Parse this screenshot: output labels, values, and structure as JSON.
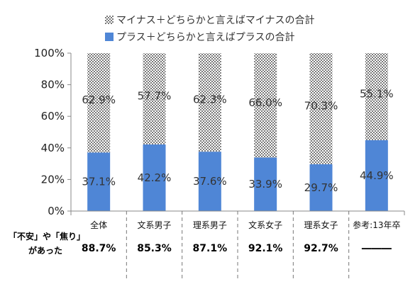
{
  "chart_data": {
    "type": "bar",
    "stacked": true,
    "categories": [
      "全体",
      "文系男子",
      "理系男子",
      "文系女子",
      "理系女子",
      "参考:13年卒"
    ],
    "series": [
      {
        "name": "プラス＋どちらかと言えばプラスの合計",
        "values": [
          37.1,
          42.2,
          37.6,
          33.9,
          29.7,
          44.9
        ],
        "labels": [
          "37.1%",
          "42.2%",
          "37.6%",
          "33.9%",
          "29.7%",
          "44.9%"
        ],
        "color": "#4f86d6"
      },
      {
        "name": "マイナス＋どちらかと言えばマイナスの合計",
        "values": [
          62.9,
          57.7,
          62.3,
          66.0,
          70.3,
          55.1
        ],
        "labels": [
          "62.9%",
          "57.7%",
          "62.3%",
          "66.0%",
          "70.3%",
          "55.1%"
        ],
        "color": "#9a9a9a",
        "pattern": "dotted"
      }
    ],
    "ylim": [
      0,
      100
    ],
    "yticks": [
      0,
      20,
      40,
      60,
      80,
      100
    ],
    "ytick_labels": [
      "0%",
      "20%",
      "40%",
      "60%",
      "80%",
      "100%"
    ],
    "legend_position": "top"
  },
  "extra_row": {
    "label_lines": [
      "「不安」や「焦り」",
      "があった"
    ],
    "values": [
      "88.7%",
      "85.3%",
      "87.1%",
      "92.1%",
      "92.7%",
      "―――"
    ]
  }
}
